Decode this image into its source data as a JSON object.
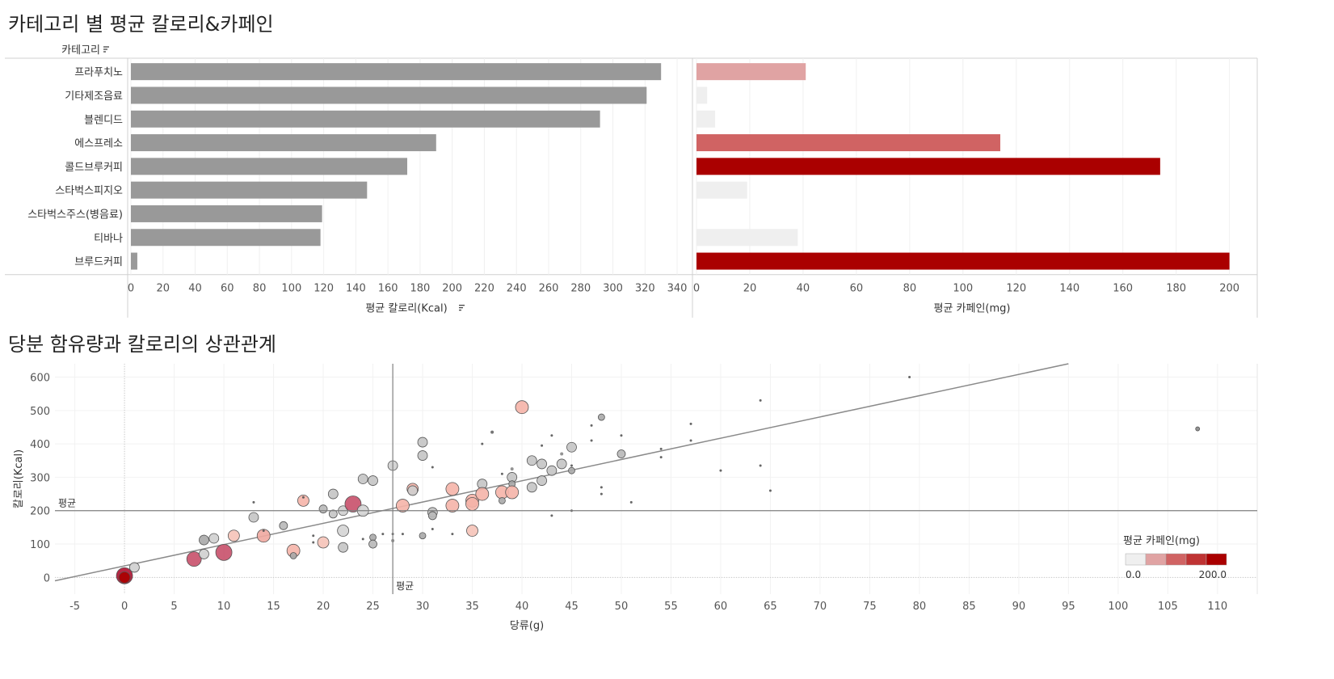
{
  "chart_data": [
    {
      "type": "bar",
      "title": "카테고리 별 평균 칼로리&카페인",
      "category_header": "카테고리",
      "categories": [
        "프라푸치노",
        "기타제조음료",
        "블렌디드",
        "에스프레소",
        "콜드브루커피",
        "스타벅스피지오",
        "스타벅스주스(병음료)",
        "티바나",
        "브루드커피"
      ],
      "panels": [
        {
          "name": "평균 칼로리(Kcal)",
          "xlabel": "평균 칼로리(Kcal)",
          "xlim": [
            0,
            345
          ],
          "ticks": [
            0,
            20,
            40,
            60,
            80,
            100,
            120,
            140,
            160,
            180,
            200,
            220,
            240,
            260,
            280,
            300,
            320,
            340
          ],
          "values": [
            330,
            321,
            292,
            190,
            172,
            147,
            119,
            118,
            4
          ],
          "color": "#999999"
        },
        {
          "name": "평균 카페인(mg)",
          "xlabel": "평균 카페인(mg)",
          "xlim": [
            0,
            208
          ],
          "ticks": [
            0,
            20,
            40,
            60,
            80,
            100,
            120,
            140,
            160,
            180,
            200
          ],
          "values": [
            41,
            4,
            7,
            114,
            174,
            19,
            0,
            38,
            200
          ],
          "colors": [
            "#e0a3a3",
            "#efefef",
            "#efefef",
            "#d06363",
            "#aa0000",
            "#efefef",
            "#efefef",
            "#efefef",
            "#aa0000"
          ]
        }
      ]
    },
    {
      "type": "scatter",
      "title": "당분 함유량과 칼로리의 상관관계",
      "xlabel": "당류(g)",
      "ylabel": "칼로리(Kcal)",
      "xlim": [
        -7,
        114
      ],
      "ylim": [
        -50,
        640
      ],
      "xticks": [
        -5,
        0,
        5,
        10,
        15,
        20,
        25,
        30,
        35,
        40,
        45,
        50,
        55,
        60,
        65,
        70,
        75,
        80,
        85,
        90,
        95,
        100,
        105,
        110
      ],
      "yticks": [
        0,
        100,
        200,
        300,
        400,
        500,
        600
      ],
      "ref_lines": {
        "x_avg": 27,
        "y_avg": 200,
        "label": "평균"
      },
      "trend_line": {
        "x": [
          -7,
          95
        ],
        "y": [
          -10,
          640
        ]
      },
      "legend": {
        "title": "평균 카페인(mg)",
        "min_label": "0.0",
        "max_label": "200.0",
        "colors": [
          "#efefef",
          "#e0a3a3",
          "#d06363",
          "#bf3333",
          "#aa0000"
        ],
        "position": "bottom-right"
      },
      "points": [
        {
          "x": 0,
          "y": 5,
          "r": 10,
          "c": "#b01030"
        },
        {
          "x": 0,
          "y": 0,
          "r": 7,
          "c": "#aa0000"
        },
        {
          "x": 1,
          "y": 30,
          "r": 6,
          "c": "#cfcfcf"
        },
        {
          "x": 7,
          "y": 55,
          "r": 9,
          "c": "#c8506a"
        },
        {
          "x": 8,
          "y": 70,
          "r": 6,
          "c": "#cfcfcf"
        },
        {
          "x": 8,
          "y": 112,
          "r": 6,
          "c": "#a8a8a8"
        },
        {
          "x": 9,
          "y": 117,
          "r": 6,
          "c": "#cfcfcf"
        },
        {
          "x": 10,
          "y": 75,
          "r": 10,
          "c": "#c8506a"
        },
        {
          "x": 11,
          "y": 125,
          "r": 7,
          "c": "#f5c3b8"
        },
        {
          "x": 13,
          "y": 180,
          "r": 6,
          "c": "#c4c4c4"
        },
        {
          "x": 13,
          "y": 225,
          "r": 1.5,
          "c": "#555555"
        },
        {
          "x": 14,
          "y": 125,
          "r": 8,
          "c": "#f0a8a0"
        },
        {
          "x": 14,
          "y": 140,
          "r": 1.5,
          "c": "#555555"
        },
        {
          "x": 16,
          "y": 155,
          "r": 5,
          "c": "#b8b8b8"
        },
        {
          "x": 17,
          "y": 80,
          "r": 8,
          "c": "#f5b4a8"
        },
        {
          "x": 17,
          "y": 65,
          "r": 4,
          "c": "#a8a8a8"
        },
        {
          "x": 18,
          "y": 230,
          "r": 7,
          "c": "#f5b4a8"
        },
        {
          "x": 18,
          "y": 240,
          "r": 1.5,
          "c": "#555555"
        },
        {
          "x": 19,
          "y": 125,
          "r": 1.5,
          "c": "#555555"
        },
        {
          "x": 19,
          "y": 105,
          "r": 1.5,
          "c": "#555555"
        },
        {
          "x": 20,
          "y": 205,
          "r": 5,
          "c": "#b8b8b8"
        },
        {
          "x": 20,
          "y": 105,
          "r": 7,
          "c": "#f5c3b8"
        },
        {
          "x": 21,
          "y": 250,
          "r": 6,
          "c": "#c4c4c4"
        },
        {
          "x": 21,
          "y": 190,
          "r": 5,
          "c": "#c4c4c4"
        },
        {
          "x": 22,
          "y": 140,
          "r": 7,
          "c": "#d4d4d4"
        },
        {
          "x": 22,
          "y": 90,
          "r": 6,
          "c": "#c4c4c4"
        },
        {
          "x": 22,
          "y": 200,
          "r": 6,
          "c": "#cfcfcf"
        },
        {
          "x": 23,
          "y": 220,
          "r": 10,
          "c": "#c8506a"
        },
        {
          "x": 24,
          "y": 295,
          "r": 6,
          "c": "#c4c4c4"
        },
        {
          "x": 24,
          "y": 200,
          "r": 7,
          "c": "#d4d4d4"
        },
        {
          "x": 24,
          "y": 115,
          "r": 1.5,
          "c": "#555555"
        },
        {
          "x": 25,
          "y": 290,
          "r": 6,
          "c": "#c4c4c4"
        },
        {
          "x": 25,
          "y": 120,
          "r": 4,
          "c": "#a8a8a8"
        },
        {
          "x": 25,
          "y": 100,
          "r": 5,
          "c": "#b8b8b8"
        },
        {
          "x": 26,
          "y": 130,
          "r": 1.5,
          "c": "#555555"
        },
        {
          "x": 27,
          "y": 335,
          "r": 6,
          "c": "#cfcfcf"
        },
        {
          "x": 27,
          "y": 130,
          "r": 1.5,
          "c": "#555555"
        },
        {
          "x": 27,
          "y": 110,
          "r": 2,
          "c": "#888888"
        },
        {
          "x": 28,
          "y": 215,
          "r": 8,
          "c": "#f5b4a8"
        },
        {
          "x": 28,
          "y": 130,
          "r": 1.5,
          "c": "#555555"
        },
        {
          "x": 29,
          "y": 265,
          "r": 7,
          "c": "#f5b4a8"
        },
        {
          "x": 29,
          "y": 260,
          "r": 6,
          "c": "#cfcfcf"
        },
        {
          "x": 30,
          "y": 405,
          "r": 6,
          "c": "#c4c4c4"
        },
        {
          "x": 30,
          "y": 365,
          "r": 6,
          "c": "#c4c4c4"
        },
        {
          "x": 30,
          "y": 125,
          "r": 4,
          "c": "#a8a8a8"
        },
        {
          "x": 31,
          "y": 330,
          "r": 1.5,
          "c": "#555555"
        },
        {
          "x": 31,
          "y": 195,
          "r": 6,
          "c": "#c4c4c4"
        },
        {
          "x": 31,
          "y": 185,
          "r": 5,
          "c": "#b8b8b8"
        },
        {
          "x": 31,
          "y": 145,
          "r": 1.5,
          "c": "#555555"
        },
        {
          "x": 33,
          "y": 265,
          "r": 8,
          "c": "#f5b4a8"
        },
        {
          "x": 33,
          "y": 215,
          "r": 8,
          "c": "#f5b4a8"
        },
        {
          "x": 33,
          "y": 130,
          "r": 1.5,
          "c": "#555555"
        },
        {
          "x": 35,
          "y": 230,
          "r": 8,
          "c": "#f5b4a8"
        },
        {
          "x": 35,
          "y": 220,
          "r": 8,
          "c": "#f5b4a8"
        },
        {
          "x": 35,
          "y": 140,
          "r": 7,
          "c": "#f5c3b8"
        },
        {
          "x": 36,
          "y": 400,
          "r": 1.5,
          "c": "#555555"
        },
        {
          "x": 36,
          "y": 280,
          "r": 6,
          "c": "#c4c4c4"
        },
        {
          "x": 36,
          "y": 250,
          "r": 8,
          "c": "#f5b4a8"
        },
        {
          "x": 37,
          "y": 435,
          "r": 2,
          "c": "#666666"
        },
        {
          "x": 38,
          "y": 310,
          "r": 1.5,
          "c": "#555555"
        },
        {
          "x": 38,
          "y": 255,
          "r": 8,
          "c": "#f5b4a8"
        },
        {
          "x": 38,
          "y": 230,
          "r": 4,
          "c": "#a8a8a8"
        },
        {
          "x": 39,
          "y": 325,
          "r": 2,
          "c": "#888888"
        },
        {
          "x": 39,
          "y": 300,
          "r": 6,
          "c": "#c4c4c4"
        },
        {
          "x": 39,
          "y": 280,
          "r": 4,
          "c": "#a8a8a8"
        },
        {
          "x": 39,
          "y": 255,
          "r": 8,
          "c": "#f5b4a8"
        },
        {
          "x": 40,
          "y": 510,
          "r": 8,
          "c": "#f5b4a8"
        },
        {
          "x": 41,
          "y": 350,
          "r": 6,
          "c": "#c4c4c4"
        },
        {
          "x": 41,
          "y": 270,
          "r": 6,
          "c": "#c4c4c4"
        },
        {
          "x": 42,
          "y": 395,
          "r": 1.5,
          "c": "#555555"
        },
        {
          "x": 42,
          "y": 340,
          "r": 6,
          "c": "#c4c4c4"
        },
        {
          "x": 42,
          "y": 290,
          "r": 6,
          "c": "#c4c4c4"
        },
        {
          "x": 43,
          "y": 425,
          "r": 1.5,
          "c": "#555555"
        },
        {
          "x": 43,
          "y": 320,
          "r": 6,
          "c": "#c4c4c4"
        },
        {
          "x": 43,
          "y": 185,
          "r": 1.5,
          "c": "#555555"
        },
        {
          "x": 44,
          "y": 370,
          "r": 2,
          "c": "#888888"
        },
        {
          "x": 44,
          "y": 340,
          "r": 6,
          "c": "#c4c4c4"
        },
        {
          "x": 45,
          "y": 390,
          "r": 6,
          "c": "#c4c4c4"
        },
        {
          "x": 45,
          "y": 335,
          "r": 1.5,
          "c": "#555555"
        },
        {
          "x": 45,
          "y": 320,
          "r": 4,
          "c": "#a8a8a8"
        },
        {
          "x": 45,
          "y": 200,
          "r": 1.5,
          "c": "#555555"
        },
        {
          "x": 47,
          "y": 455,
          "r": 1.5,
          "c": "#555555"
        },
        {
          "x": 47,
          "y": 410,
          "r": 1.5,
          "c": "#555555"
        },
        {
          "x": 48,
          "y": 480,
          "r": 4,
          "c": "#a8a8a8"
        },
        {
          "x": 48,
          "y": 270,
          "r": 1.5,
          "c": "#555555"
        },
        {
          "x": 48,
          "y": 250,
          "r": 1.5,
          "c": "#555555"
        },
        {
          "x": 50,
          "y": 425,
          "r": 1.5,
          "c": "#555555"
        },
        {
          "x": 50,
          "y": 370,
          "r": 5,
          "c": "#b8b8b8"
        },
        {
          "x": 51,
          "y": 225,
          "r": 1.5,
          "c": "#555555"
        },
        {
          "x": 54,
          "y": 385,
          "r": 1.5,
          "c": "#555555"
        },
        {
          "x": 54,
          "y": 360,
          "r": 1.5,
          "c": "#555555"
        },
        {
          "x": 57,
          "y": 460,
          "r": 1.5,
          "c": "#555555"
        },
        {
          "x": 57,
          "y": 410,
          "r": 1.5,
          "c": "#555555"
        },
        {
          "x": 60,
          "y": 320,
          "r": 1.5,
          "c": "#555555"
        },
        {
          "x": 64,
          "y": 530,
          "r": 1.5,
          "c": "#555555"
        },
        {
          "x": 64,
          "y": 335,
          "r": 1.5,
          "c": "#555555"
        },
        {
          "x": 65,
          "y": 260,
          "r": 1.5,
          "c": "#555555"
        },
        {
          "x": 79,
          "y": 600,
          "r": 1.5,
          "c": "#555555"
        },
        {
          "x": 108,
          "y": 445,
          "r": 2.5,
          "c": "#888888"
        }
      ]
    }
  ]
}
